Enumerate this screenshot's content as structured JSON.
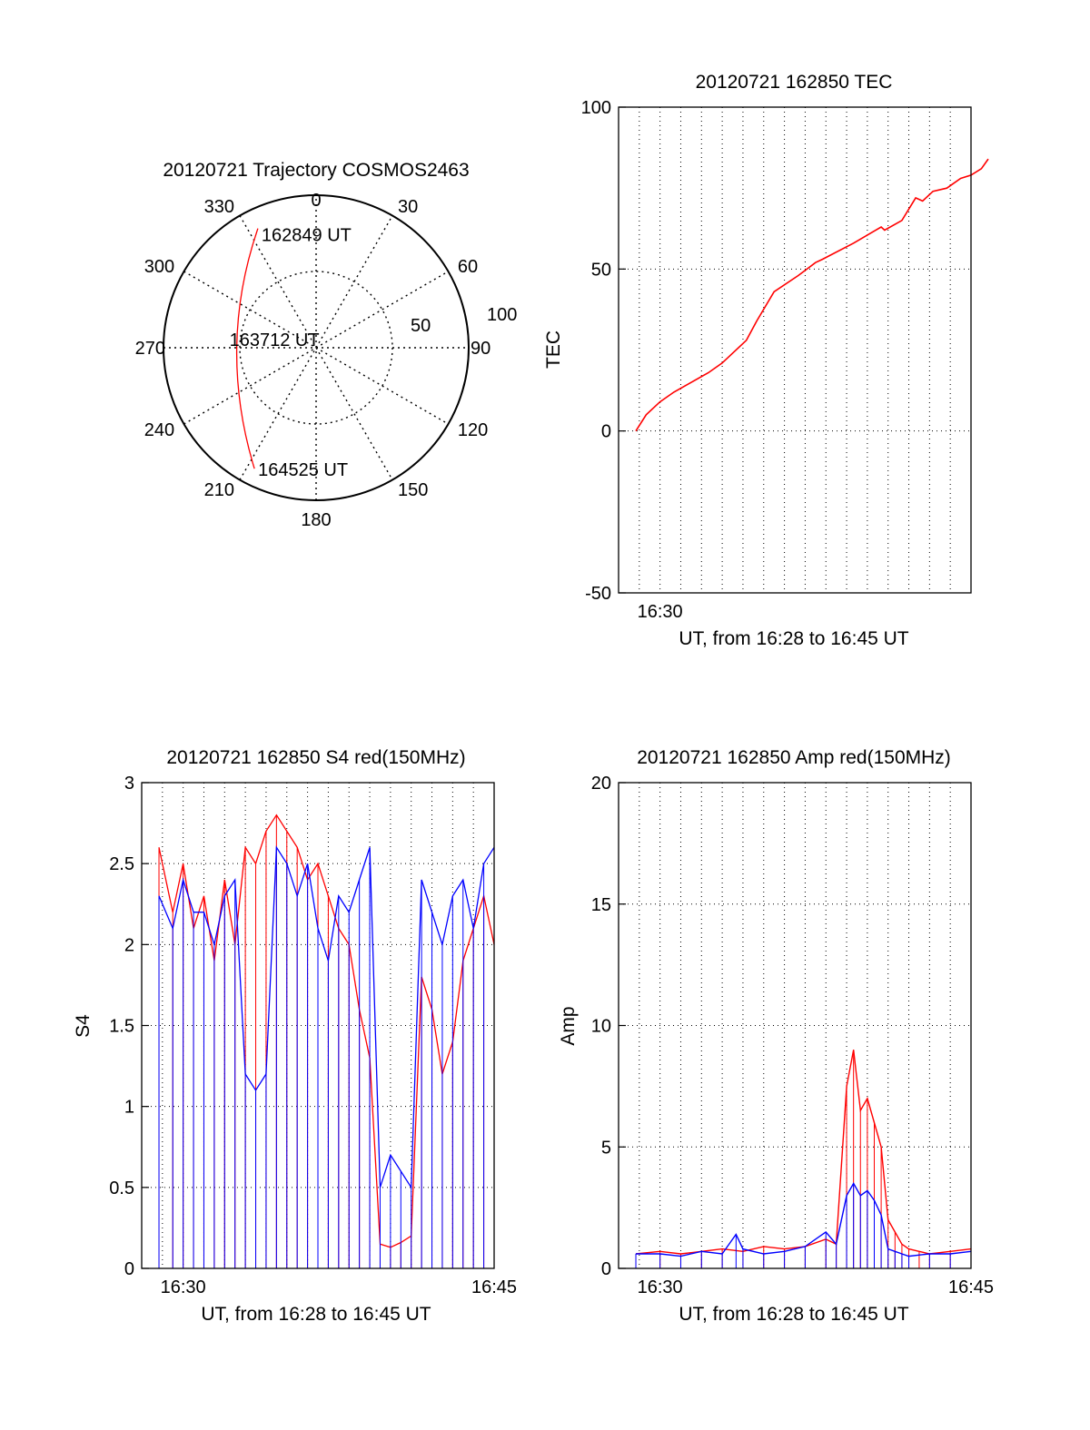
{
  "chart_data": [
    {
      "type": "polar",
      "title": "20120721 Trajectory COSMOS2463",
      "angle_labels": [
        "0",
        "30",
        "60",
        "90",
        "120",
        "150",
        "180",
        "210",
        "240",
        "270",
        "300",
        "330"
      ],
      "radius_labels": [
        "50",
        "100"
      ],
      "grid": true,
      "trajectory_color": "#ff0000",
      "annotations": [
        {
          "text": "162849 UT",
          "azimuth": 334,
          "zenith": 87
        },
        {
          "text": "163712 UT",
          "azimuth": 270,
          "zenith": 52
        },
        {
          "text": "164525 UT",
          "azimuth": 207,
          "zenith": 89
        }
      ]
    },
    {
      "type": "line",
      "title": "20120721 162850 TEC",
      "xlabel": "UT, from 16:28 to 16:45 UT",
      "ylabel": "TEC",
      "xlim": [
        "16:28",
        "16:45"
      ],
      "ylim": [
        -50,
        100
      ],
      "ytick_labels": [
        "-50",
        "0",
        "50",
        "100"
      ],
      "xtick_labels": [
        "16:30"
      ],
      "grid": true,
      "series": [
        {
          "color": "#ff0000",
          "x": [
            "16:28:50",
            "16:29:20",
            "16:30:00",
            "16:30:40",
            "16:31:30",
            "16:32:20",
            "16:33:00",
            "16:33:30",
            "16:34:10",
            "16:34:40",
            "16:35:30",
            "16:36:40",
            "16:37:30",
            "16:37:50",
            "16:39:20",
            "16:40:40",
            "16:40:50",
            "16:41:40",
            "16:42:20",
            "16:42:40",
            "16:43:10",
            "16:43:50",
            "16:44:30",
            "16:45:00",
            "16:45:30",
            "16:45:50"
          ],
          "y": [
            0,
            5,
            9,
            12,
            15,
            18,
            21,
            24,
            28,
            34,
            43,
            48,
            52,
            53,
            58,
            63,
            62,
            65,
            72,
            71,
            74,
            75,
            78,
            79,
            81,
            84
          ]
        }
      ]
    },
    {
      "type": "line",
      "title": "20120721 162850 S4 red(150MHz)",
      "xlabel": "UT, from 16:28 to 16:45 UT",
      "ylabel": "S4",
      "xlim": [
        "16:28",
        "16:45"
      ],
      "ylim": [
        0,
        3
      ],
      "ytick_labels": [
        "0",
        "0.5",
        "1",
        "1.5",
        "2",
        "2.5",
        "3"
      ],
      "xtick_labels": [
        "16:30",
        "16:45"
      ],
      "grid": true,
      "series": [
        {
          "color": "#ff0000",
          "x": [
            "16:28:50",
            "16:29:30",
            "16:30:00",
            "16:30:30",
            "16:31:00",
            "16:31:30",
            "16:32:00",
            "16:32:30",
            "16:33:00",
            "16:33:30",
            "16:34:00",
            "16:34:30",
            "16:35:00",
            "16:35:30",
            "16:36:00",
            "16:36:30",
            "16:37:00",
            "16:37:30",
            "16:38:00",
            "16:38:30",
            "16:39:00",
            "16:39:30",
            "16:40:00",
            "16:40:30",
            "16:41:00",
            "16:41:30",
            "16:42:00",
            "16:42:30",
            "16:43:00",
            "16:43:30",
            "16:44:00",
            "16:44:30",
            "16:45:00"
          ],
          "y": [
            2.6,
            2.2,
            2.5,
            2.1,
            2.3,
            1.9,
            2.4,
            2.0,
            2.6,
            2.5,
            2.7,
            2.8,
            2.7,
            2.6,
            2.4,
            2.5,
            2.3,
            2.1,
            2.0,
            1.6,
            1.3,
            0.15,
            0.13,
            0.16,
            0.2,
            1.8,
            1.6,
            1.2,
            1.4,
            1.9,
            2.1,
            2.3,
            2.0
          ]
        },
        {
          "color": "#0000ff",
          "x": [
            "16:28:50",
            "16:29:30",
            "16:30:00",
            "16:30:30",
            "16:31:00",
            "16:31:30",
            "16:32:00",
            "16:32:30",
            "16:33:00",
            "16:33:30",
            "16:34:00",
            "16:34:30",
            "16:35:00",
            "16:35:30",
            "16:36:00",
            "16:36:30",
            "16:37:00",
            "16:37:30",
            "16:38:00",
            "16:38:30",
            "16:39:00",
            "16:39:30",
            "16:40:00",
            "16:40:30",
            "16:41:00",
            "16:41:30",
            "16:42:00",
            "16:42:30",
            "16:43:00",
            "16:43:30",
            "16:44:00",
            "16:44:30",
            "16:45:00"
          ],
          "y": [
            2.3,
            2.1,
            2.4,
            2.2,
            2.2,
            2.0,
            2.3,
            2.4,
            1.2,
            1.1,
            1.2,
            2.6,
            2.5,
            2.3,
            2.5,
            2.1,
            1.9,
            2.3,
            2.2,
            2.4,
            2.6,
            0.5,
            0.7,
            0.6,
            0.5,
            2.4,
            2.2,
            2.0,
            2.3,
            2.4,
            2.1,
            2.5,
            2.6
          ]
        }
      ]
    },
    {
      "type": "line",
      "title": "20120721 162850 Amp red(150MHz)",
      "xlabel": "UT, from 16:28 to 16:45 UT",
      "ylabel": "Amp",
      "xlim": [
        "16:28",
        "16:45"
      ],
      "ylim": [
        0,
        20
      ],
      "ytick_labels": [
        "0",
        "5",
        "10",
        "15",
        "20"
      ],
      "xtick_labels": [
        "16:30",
        "16:45"
      ],
      "grid": true,
      "series": [
        {
          "color": "#ff0000",
          "x": [
            "16:28:50",
            "16:30:00",
            "16:31:00",
            "16:32:00",
            "16:33:00",
            "16:34:00",
            "16:35:00",
            "16:36:00",
            "16:37:00",
            "16:38:00",
            "16:38:30",
            "16:39:00",
            "16:39:20",
            "16:39:40",
            "16:40:00",
            "16:40:20",
            "16:40:40",
            "16:41:00",
            "16:41:20",
            "16:41:40",
            "16:42:00",
            "16:42:30",
            "16:43:00",
            "16:44:00",
            "16:45:00"
          ],
          "y": [
            0.6,
            0.7,
            0.6,
            0.7,
            0.8,
            0.7,
            0.9,
            0.8,
            0.9,
            1.2,
            1.0,
            7.5,
            9.0,
            6.5,
            7.0,
            6.0,
            5.0,
            2.0,
            1.5,
            1.0,
            0.8,
            0.7,
            0.6,
            0.7,
            0.8
          ]
        },
        {
          "color": "#0000ff",
          "x": [
            "16:28:50",
            "16:30:00",
            "16:31:00",
            "16:32:00",
            "16:33:00",
            "16:33:40",
            "16:34:00",
            "16:35:00",
            "16:36:00",
            "16:37:00",
            "16:38:00",
            "16:38:30",
            "16:39:00",
            "16:39:20",
            "16:39:40",
            "16:40:00",
            "16:40:20",
            "16:40:40",
            "16:41:00",
            "16:41:20",
            "16:41:40",
            "16:42:00",
            "16:43:00",
            "16:44:00",
            "16:45:00"
          ],
          "y": [
            0.6,
            0.6,
            0.5,
            0.7,
            0.6,
            1.4,
            0.8,
            0.6,
            0.7,
            0.9,
            1.5,
            1.0,
            3.0,
            3.5,
            3.0,
            3.2,
            2.8,
            2.2,
            0.8,
            0.7,
            0.6,
            0.5,
            0.6,
            0.6,
            0.7
          ]
        }
      ]
    }
  ]
}
